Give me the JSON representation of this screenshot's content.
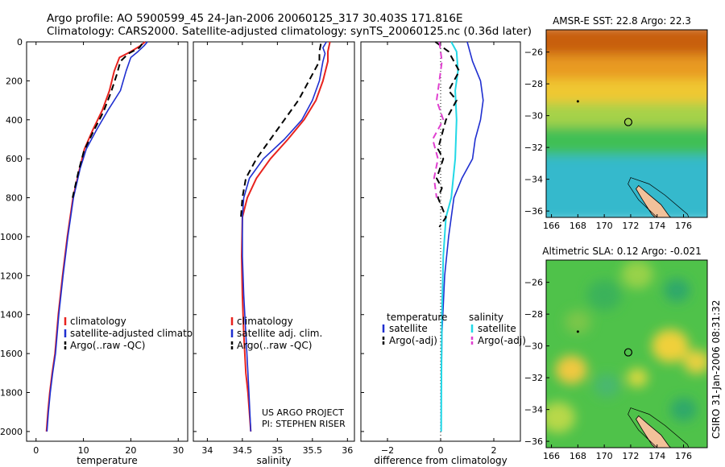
{
  "header": {
    "title_line1": "Argo profile: AO 5900599_45 24-Jan-2006 20060125_317 30.403S 171.816E",
    "title_line2": "Climatology: CARS2000. Satellite-adjusted climatology: synTS_20060125.nc (0.36d later)"
  },
  "colors": {
    "climatology": "#e8231e",
    "satellite": "#1f2fd0",
    "argo": "#000000",
    "satellite_diff_salinity": "#22d8e6",
    "argo_diff_salinity": "#e040d0"
  },
  "credits": {
    "project": "US ARGO PROJECT",
    "pi": "PI: STEPHEN RISER",
    "side_stamp": "CSIRO 31-Jan-2006 08:31:32"
  },
  "chart_data": [
    {
      "id": "temperature",
      "type": "line",
      "xlabel": "temperature",
      "ylabel": "",
      "xlim": [
        -2,
        32
      ],
      "ylim": [
        2050,
        0
      ],
      "xticks": [
        0,
        10,
        20,
        30
      ],
      "yticks": [
        0,
        200,
        400,
        600,
        800,
        1000,
        1200,
        1400,
        1600,
        1800,
        2000
      ],
      "legend": {
        "position": "lower-right",
        "entries": [
          "climatology",
          "satellite-adjusted climatology",
          "Argo(..raw -QC)"
        ]
      },
      "series": [
        {
          "name": "climatology",
          "color_key": "climatology",
          "style": "solid",
          "x": [
            23,
            22,
            20,
            17.6,
            16.5,
            15.5,
            14,
            12,
            10.2,
            9.2,
            7.8,
            6.6,
            5.6,
            4.7,
            4.0,
            3.4,
            2.9,
            2.5,
            2.2
          ],
          "y": [
            0,
            20,
            50,
            80,
            150,
            250,
            350,
            450,
            550,
            650,
            800,
            1000,
            1200,
            1400,
            1600,
            1700,
            1800,
            1900,
            2000
          ]
        },
        {
          "name": "satellite-adjusted climatology",
          "color_key": "satellite",
          "style": "solid",
          "x": [
            23.5,
            22.8,
            21.5,
            20,
            19,
            17.8,
            15.2,
            12.8,
            10.6,
            9.3,
            7.9,
            6.7,
            5.7,
            4.8,
            4.1,
            3.5,
            3.0,
            2.6,
            2.3
          ],
          "y": [
            0,
            20,
            50,
            80,
            150,
            250,
            350,
            450,
            550,
            650,
            800,
            1000,
            1200,
            1400,
            1600,
            1700,
            1800,
            1900,
            2000
          ]
        },
        {
          "name": "Argo(..raw -QC)",
          "color_key": "argo",
          "style": "dashed",
          "x": [
            22.4,
            21.8,
            19.5,
            17.8,
            17,
            15.8,
            14.2,
            12.1,
            10.1,
            9.0,
            7.7
          ],
          "y": [
            10,
            30,
            60,
            100,
            170,
            260,
            360,
            460,
            560,
            660,
            800
          ]
        }
      ]
    },
    {
      "id": "salinity",
      "type": "line",
      "xlabel": "salinity",
      "ylabel": "",
      "xlim": [
        33.8,
        36.1
      ],
      "ylim": [
        2050,
        0
      ],
      "xticks": [
        34,
        34.5,
        35,
        35.5,
        36
      ],
      "yticks": [],
      "legend": {
        "position": "lower-right",
        "entries": [
          "climatology",
          "satellite adj. clim.",
          "Argo(..raw -QC)"
        ]
      },
      "series": [
        {
          "name": "climatology",
          "color_key": "climatology",
          "style": "solid",
          "x": [
            35.75,
            35.72,
            35.72,
            35.65,
            35.55,
            35.38,
            35.15,
            34.9,
            34.7,
            34.57,
            34.5,
            34.49,
            34.5,
            34.52,
            34.55,
            34.58,
            34.6,
            34.62
          ],
          "y": [
            0,
            50,
            100,
            200,
            300,
            400,
            500,
            600,
            700,
            800,
            900,
            1100,
            1300,
            1500,
            1700,
            1800,
            1900,
            2000
          ]
        },
        {
          "name": "satellite adj. clim.",
          "color_key": "satellite",
          "style": "solid",
          "x": [
            35.7,
            35.65,
            35.68,
            35.65,
            35.6,
            35.5,
            35.35,
            35.1,
            34.8,
            34.6,
            34.52,
            34.5,
            34.5,
            34.52,
            34.55,
            34.58,
            34.6,
            34.62
          ],
          "y": [
            0,
            30,
            60,
            100,
            200,
            300,
            400,
            500,
            600,
            700,
            800,
            900,
            1100,
            1300,
            1500,
            1700,
            1850,
            2000
          ]
        },
        {
          "name": "Argo(..raw -QC)",
          "color_key": "argo",
          "style": "dashed",
          "x": [
            35.62,
            35.6,
            35.6,
            35.45,
            35.3,
            35.1,
            34.9,
            34.7,
            34.55,
            34.5,
            34.48
          ],
          "y": [
            10,
            50,
            100,
            200,
            300,
            400,
            500,
            600,
            700,
            800,
            900
          ]
        }
      ]
    },
    {
      "id": "difference",
      "type": "line",
      "xlabel": "difference from climatology",
      "ylabel": "",
      "xlim": [
        -3,
        3
      ],
      "ylim": [
        2050,
        0
      ],
      "xticks": [
        -2,
        0,
        2
      ],
      "yticks": [],
      "legend": {
        "position": "lower-center",
        "headers": [
          "temperature",
          "salinity"
        ],
        "entries": [
          "satellite",
          "Argo(-adj)",
          "satellite",
          "Argo(-adj)"
        ]
      },
      "series": [
        {
          "name": "temperature satellite",
          "color_key": "satellite",
          "style": "solid",
          "x": [
            1.0,
            1.2,
            1.5,
            1.6,
            1.5,
            1.3,
            1.2,
            0.8,
            0.5,
            0.3,
            0.15,
            0.05,
            0.02,
            0.02
          ],
          "y": [
            0,
            100,
            200,
            300,
            400,
            500,
            600,
            700,
            800,
            1000,
            1200,
            1500,
            1800,
            2000
          ]
        },
        {
          "name": "salinity satellite",
          "color_key": "satellite_diff_salinity",
          "style": "solid",
          "x": [
            0.4,
            0.6,
            0.65,
            0.55,
            0.6,
            0.55,
            0.4,
            0.2,
            0.1,
            0.05,
            0.03,
            0.02
          ],
          "y": [
            0,
            50,
            150,
            250,
            400,
            600,
            800,
            900,
            1100,
            1400,
            1700,
            2000
          ]
        },
        {
          "name": "temperature Argo(-adj)",
          "color_key": "argo",
          "style": "dashed",
          "x": [
            -0.2,
            0.3,
            0.5,
            0.7,
            0.3,
            0.6,
            0.2,
            0.1,
            -0.1,
            0.1,
            -0.15,
            0.05,
            -0.1,
            0.2,
            -0.05
          ],
          "y": [
            0,
            50,
            100,
            150,
            250,
            300,
            400,
            450,
            550,
            600,
            700,
            750,
            800,
            900,
            950
          ]
        },
        {
          "name": "salinity Argo(-adj)",
          "color_key": "argo_diff_salinity",
          "style": "dashed",
          "x": [
            -0.05,
            0.05,
            -0.05,
            -0.15,
            0.1,
            -0.3,
            -0.1,
            -0.25,
            -0.15
          ],
          "y": [
            0,
            100,
            200,
            300,
            400,
            500,
            600,
            700,
            800
          ]
        }
      ]
    },
    {
      "id": "sst-map",
      "type": "heatmap",
      "title": "AMSR-E SST: 22.8  Argo: 22.3",
      "xlim": [
        165.6,
        177.8
      ],
      "ylim": [
        -36.4,
        -24.6
      ],
      "xticks": [
        166,
        168,
        170,
        172,
        174,
        176
      ],
      "yticks": [
        -26,
        -28,
        -30,
        -32,
        -34,
        -36
      ],
      "marker": {
        "lon": 171.816,
        "lat": -30.403
      },
      "color_bands": [
        {
          "lat_top": -24.6,
          "lat_bottom": -26.5,
          "color": "#c85f10"
        },
        {
          "lat_top": -26.5,
          "lat_bottom": -28.0,
          "color": "#e89a22"
        },
        {
          "lat_top": -28.0,
          "lat_bottom": -29.5,
          "color": "#f0c830"
        },
        {
          "lat_top": -29.5,
          "lat_bottom": -31.0,
          "color": "#a6d24a"
        },
        {
          "lat_top": -31.0,
          "lat_bottom": -32.8,
          "color": "#3fbf55"
        },
        {
          "lat_top": -32.8,
          "lat_bottom": -36.4,
          "color": "#35b9cc"
        }
      ]
    },
    {
      "id": "sla-map",
      "type": "heatmap",
      "title": "Altimetric SLA: 0.12  Argo: -0.021",
      "xlim": [
        165.6,
        177.8
      ],
      "ylim": [
        -36.4,
        -24.6
      ],
      "xticks": [
        166,
        168,
        170,
        172,
        174,
        176
      ],
      "yticks": [
        -26,
        -28,
        -30,
        -32,
        -34,
        -36
      ],
      "marker": {
        "lon": 171.816,
        "lat": -30.403
      },
      "base_color": "#4fc24a",
      "blobs": [
        {
          "lon": 172.5,
          "lat": -25.5,
          "r": 1.2,
          "color": "#98d248"
        },
        {
          "lon": 175.5,
          "lat": -26.5,
          "r": 1.0,
          "color": "#2fa86a"
        },
        {
          "lon": 170.0,
          "lat": -26.8,
          "r": 1.3,
          "color": "#3ab25a"
        },
        {
          "lon": 175.0,
          "lat": -30.0,
          "r": 1.4,
          "color": "#f0d03a"
        },
        {
          "lon": 177.0,
          "lat": -31.0,
          "r": 1.0,
          "color": "#e8d040"
        },
        {
          "lon": 167.5,
          "lat": -31.5,
          "r": 1.2,
          "color": "#f0c840"
        },
        {
          "lon": 172.5,
          "lat": -32.0,
          "r": 0.8,
          "color": "#d8d840"
        },
        {
          "lon": 166.5,
          "lat": -34.5,
          "r": 1.3,
          "color": "#b8d84a"
        },
        {
          "lon": 170.2,
          "lat": -32.5,
          "r": 1.0,
          "color": "#48b86e"
        },
        {
          "lon": 176.0,
          "lat": -34.0,
          "r": 1.0,
          "color": "#2fa86a"
        },
        {
          "lon": 168.0,
          "lat": -28.5,
          "r": 1.0,
          "color": "#7ac64a"
        }
      ]
    }
  ]
}
